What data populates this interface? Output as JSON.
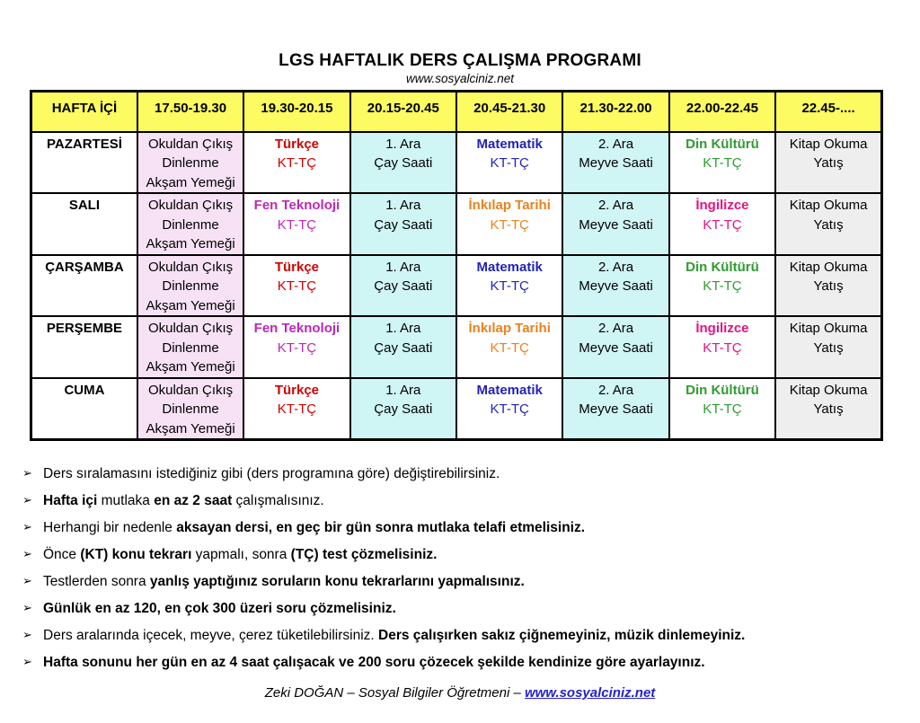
{
  "page": {
    "title": "LGS HAFTALIK DERS ÇALIŞMA PROGRAMI",
    "subtitle": "www.sosyalciniz.net"
  },
  "colors": {
    "header_yellow": "#fcfb62",
    "pink": "#f7e2f5",
    "cyan": "#cff5f4",
    "gray": "#eeeeee",
    "white": "#ffffff",
    "black": "#000000",
    "red": "#d10000",
    "blue": "#2222bb",
    "green": "#2e9b30",
    "magenta": "#c026b5",
    "orange": "#e8821e",
    "hotpink": "#e6137f",
    "link_blue": "#2222cc"
  },
  "table": {
    "headers": [
      "HAFTA İÇİ",
      "17.50-19.30",
      "19.30-20.15",
      "20.15-20.45",
      "20.45-21.30",
      "21.30-22.00",
      "22.00-22.45",
      "22.45-...."
    ],
    "rows": [
      {
        "day": "PAZARTESİ",
        "cells": [
          {
            "lines": [
              "Okuldan Çıkış",
              "Dinlenme",
              "Akşam Yemeği"
            ],
            "bg": "pink",
            "fg": "black",
            "bold_first": false
          },
          {
            "lines": [
              "Türkçe",
              "KT-TÇ"
            ],
            "bg": "white",
            "fg": "red",
            "bold_first": true
          },
          {
            "lines": [
              "1. Ara",
              "Çay Saati"
            ],
            "bg": "cyan",
            "fg": "black",
            "bold_first": false
          },
          {
            "lines": [
              "Matematik",
              "KT-TÇ"
            ],
            "bg": "white",
            "fg": "blue",
            "bold_first": true
          },
          {
            "lines": [
              "2. Ara",
              "Meyve Saati"
            ],
            "bg": "cyan",
            "fg": "black",
            "bold_first": false
          },
          {
            "lines": [
              "Din Kültürü",
              "KT-TÇ"
            ],
            "bg": "white",
            "fg": "green",
            "bold_first": true
          },
          {
            "lines": [
              "Kitap Okuma",
              "Yatış"
            ],
            "bg": "gray",
            "fg": "black",
            "bold_first": false
          }
        ]
      },
      {
        "day": "SALI",
        "cells": [
          {
            "lines": [
              "Okuldan Çıkış",
              "Dinlenme",
              "Akşam Yemeği"
            ],
            "bg": "pink",
            "fg": "black",
            "bold_first": false
          },
          {
            "lines": [
              "Fen Teknoloji",
              "KT-TÇ"
            ],
            "bg": "white",
            "fg": "magenta",
            "bold_first": true
          },
          {
            "lines": [
              "1. Ara",
              "Çay Saati"
            ],
            "bg": "cyan",
            "fg": "black",
            "bold_first": false
          },
          {
            "lines": [
              "İnkılap Tarihi",
              "KT-TÇ"
            ],
            "bg": "white",
            "fg": "orange",
            "bold_first": true
          },
          {
            "lines": [
              "2. Ara",
              "Meyve Saati"
            ],
            "bg": "cyan",
            "fg": "black",
            "bold_first": false
          },
          {
            "lines": [
              "İngilizce",
              "KT-TÇ"
            ],
            "bg": "white",
            "fg": "hotpink",
            "bold_first": true
          },
          {
            "lines": [
              "Kitap Okuma",
              "Yatış"
            ],
            "bg": "gray",
            "fg": "black",
            "bold_first": false
          }
        ]
      },
      {
        "day": "ÇARŞAMBA",
        "cells": [
          {
            "lines": [
              "Okuldan Çıkış",
              "Dinlenme",
              "Akşam Yemeği"
            ],
            "bg": "pink",
            "fg": "black",
            "bold_first": false
          },
          {
            "lines": [
              "Türkçe",
              "KT-TÇ"
            ],
            "bg": "white",
            "fg": "red",
            "bold_first": true
          },
          {
            "lines": [
              "1. Ara",
              "Çay Saati"
            ],
            "bg": "cyan",
            "fg": "black",
            "bold_first": false
          },
          {
            "lines": [
              "Matematik",
              "KT-TÇ"
            ],
            "bg": "white",
            "fg": "blue",
            "bold_first": true
          },
          {
            "lines": [
              "2. Ara",
              "Meyve Saati"
            ],
            "bg": "cyan",
            "fg": "black",
            "bold_first": false
          },
          {
            "lines": [
              "Din Kültürü",
              "KT-TÇ"
            ],
            "bg": "white",
            "fg": "green",
            "bold_first": true
          },
          {
            "lines": [
              "Kitap Okuma",
              "Yatış"
            ],
            "bg": "gray",
            "fg": "black",
            "bold_first": false
          }
        ]
      },
      {
        "day": "PERŞEMBE",
        "cells": [
          {
            "lines": [
              "Okuldan Çıkış",
              "Dinlenme",
              "Akşam Yemeği"
            ],
            "bg": "pink",
            "fg": "black",
            "bold_first": false
          },
          {
            "lines": [
              "Fen Teknoloji",
              "KT-TÇ"
            ],
            "bg": "white",
            "fg": "magenta",
            "bold_first": true
          },
          {
            "lines": [
              "1. Ara",
              "Çay Saati"
            ],
            "bg": "cyan",
            "fg": "black",
            "bold_first": false
          },
          {
            "lines": [
              "İnkılap Tarihi",
              "KT-TÇ"
            ],
            "bg": "white",
            "fg": "orange",
            "bold_first": true
          },
          {
            "lines": [
              "2. Ara",
              "Meyve Saati"
            ],
            "bg": "cyan",
            "fg": "black",
            "bold_first": false
          },
          {
            "lines": [
              "İngilizce",
              "KT-TÇ"
            ],
            "bg": "white",
            "fg": "hotpink",
            "bold_first": true
          },
          {
            "lines": [
              "Kitap Okuma",
              "Yatış"
            ],
            "bg": "gray",
            "fg": "black",
            "bold_first": false
          }
        ]
      },
      {
        "day": "CUMA",
        "cells": [
          {
            "lines": [
              "Okuldan Çıkış",
              "Dinlenme",
              "Akşam Yemeği"
            ],
            "bg": "pink",
            "fg": "black",
            "bold_first": false
          },
          {
            "lines": [
              "Türkçe",
              "KT-TÇ"
            ],
            "bg": "white",
            "fg": "red",
            "bold_first": true
          },
          {
            "lines": [
              "1. Ara",
              "Çay Saati"
            ],
            "bg": "cyan",
            "fg": "black",
            "bold_first": false
          },
          {
            "lines": [
              "Matematik",
              "KT-TÇ"
            ],
            "bg": "white",
            "fg": "blue",
            "bold_first": true
          },
          {
            "lines": [
              "2. Ara",
              "Meyve Saati"
            ],
            "bg": "cyan",
            "fg": "black",
            "bold_first": false
          },
          {
            "lines": [
              "Din Kültürü",
              "KT-TÇ"
            ],
            "bg": "white",
            "fg": "green",
            "bold_first": true
          },
          {
            "lines": [
              "Kitap Okuma",
              "Yatış"
            ],
            "bg": "gray",
            "fg": "black",
            "bold_first": false
          }
        ]
      }
    ]
  },
  "notes": {
    "bullet_glyph": "➢",
    "items": [
      {
        "segments": [
          {
            "t": "Ders sıralamasını istediğiniz gibi (ders programına göre) değiştirebilirsiniz.",
            "b": false
          }
        ]
      },
      {
        "segments": [
          {
            "t": "Hafta içi",
            "b": true
          },
          {
            "t": " mutlaka ",
            "b": false
          },
          {
            "t": "en az 2 saat",
            "b": true
          },
          {
            "t": " çalışmalısınız.",
            "b": false
          }
        ]
      },
      {
        "segments": [
          {
            "t": "Herhangi bir nedenle ",
            "b": false
          },
          {
            "t": "aksayan dersi, en geç bir gün sonra mutlaka telafi etmelisiniz.",
            "b": true
          }
        ]
      },
      {
        "segments": [
          {
            "t": "Önce ",
            "b": false
          },
          {
            "t": "(KT) konu tekrarı",
            "b": true
          },
          {
            "t": " yapmalı, sonra ",
            "b": false
          },
          {
            "t": "(TÇ) test çözmelisiniz.",
            "b": true
          }
        ]
      },
      {
        "segments": [
          {
            "t": "Testlerden sonra ",
            "b": false
          },
          {
            "t": "yanlış yaptığınız soruların konu tekrarlarını yapmalısınız.",
            "b": true
          }
        ]
      },
      {
        "segments": [
          {
            "t": "Günlük en az 120, en çok 300 üzeri soru çözmelisiniz.",
            "b": true
          }
        ]
      },
      {
        "segments": [
          {
            "t": "Ders aralarında içecek, meyve, çerez tüketilebilirsiniz. ",
            "b": false
          },
          {
            "t": "Ders çalışırken sakız çiğnemeyiniz, müzik dinlemeyiniz.",
            "b": true
          }
        ]
      },
      {
        "segments": [
          {
            "t": "Hafta sonunu her gün en az 4 saat çalışacak ve 200 soru çözecek şekilde kendinize göre ayarlayınız.",
            "b": true
          }
        ]
      }
    ]
  },
  "footer": {
    "author_text": "Zeki DOĞAN – Sosyal Bilgiler Öğretmeni – ",
    "link_text": "www.sosyalciniz.net"
  }
}
